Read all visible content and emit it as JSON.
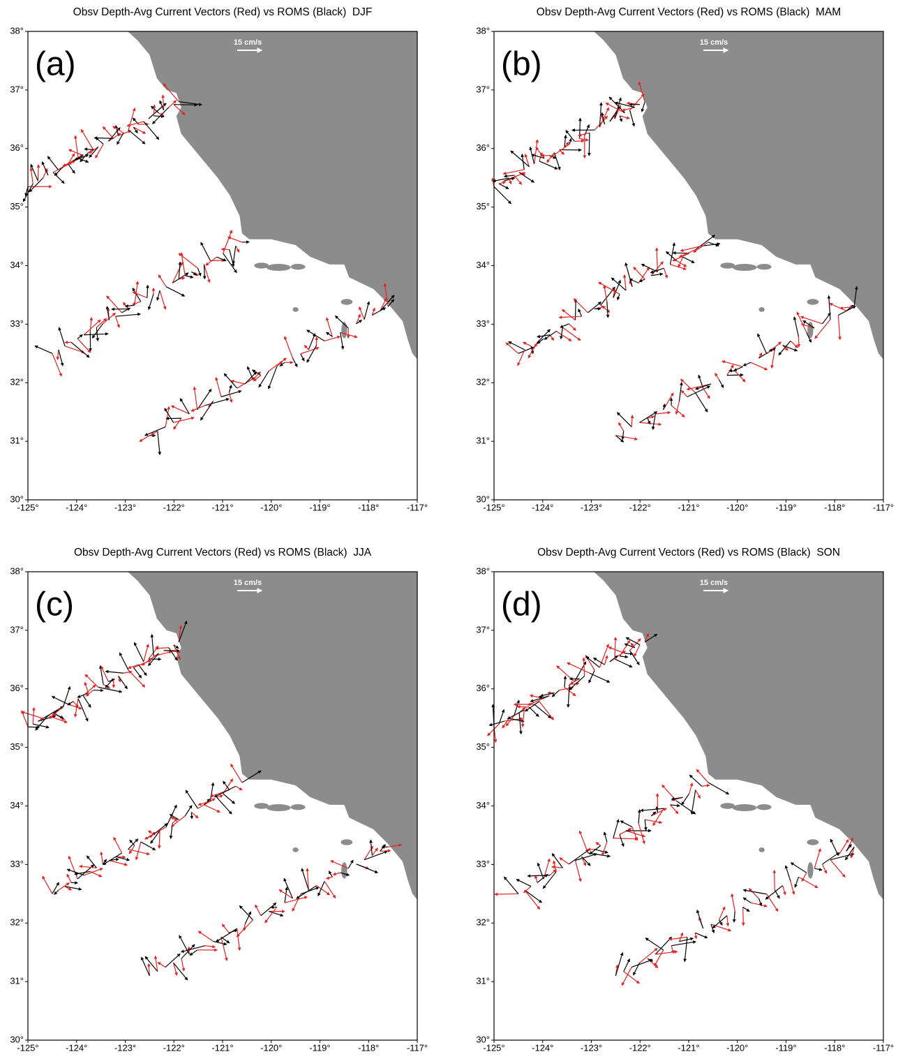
{
  "panels": [
    {
      "title": "Obsv Depth-Avg Current Vectors (Red) vs ROMS (Black)  DJF",
      "label": "(a)"
    },
    {
      "title": "Obsv Depth-Avg Current Vectors (Red) vs ROMS (Black)  MAM",
      "label": "(b)"
    },
    {
      "title": "Obsv Depth-Avg Current Vectors (Red) vs ROMS (Black)  JJA",
      "label": "(c)"
    },
    {
      "title": "Obsv Depth-Avg Current Vectors (Red) vs ROMS (Black)  SON",
      "label": "(d)"
    }
  ],
  "scale_label": "15 cm/s",
  "xlim": [
    -125,
    -117
  ],
  "ylim": [
    30,
    38
  ],
  "xticks": [
    {
      "value": -125,
      "label": "-125°"
    },
    {
      "value": -124,
      "label": "-124°"
    },
    {
      "value": -123,
      "label": "-123°"
    },
    {
      "value": -122,
      "label": "-122°"
    },
    {
      "value": -121,
      "label": "-121°"
    },
    {
      "value": -120,
      "label": "-120°"
    },
    {
      "value": -119,
      "label": "-119°"
    },
    {
      "value": -118,
      "label": "-118°"
    },
    {
      "value": -117,
      "label": "-117°"
    }
  ],
  "yticks": [
    {
      "value": 30,
      "label": "30°"
    },
    {
      "value": 31,
      "label": "31°"
    },
    {
      "value": 32,
      "label": "32°"
    },
    {
      "value": 33,
      "label": "33°"
    },
    {
      "value": 34,
      "label": "34°"
    },
    {
      "value": 35,
      "label": "35°"
    },
    {
      "value": 36,
      "label": "36°"
    },
    {
      "value": 37,
      "label": "37°"
    },
    {
      "value": 38,
      "label": "38°"
    }
  ]
}
